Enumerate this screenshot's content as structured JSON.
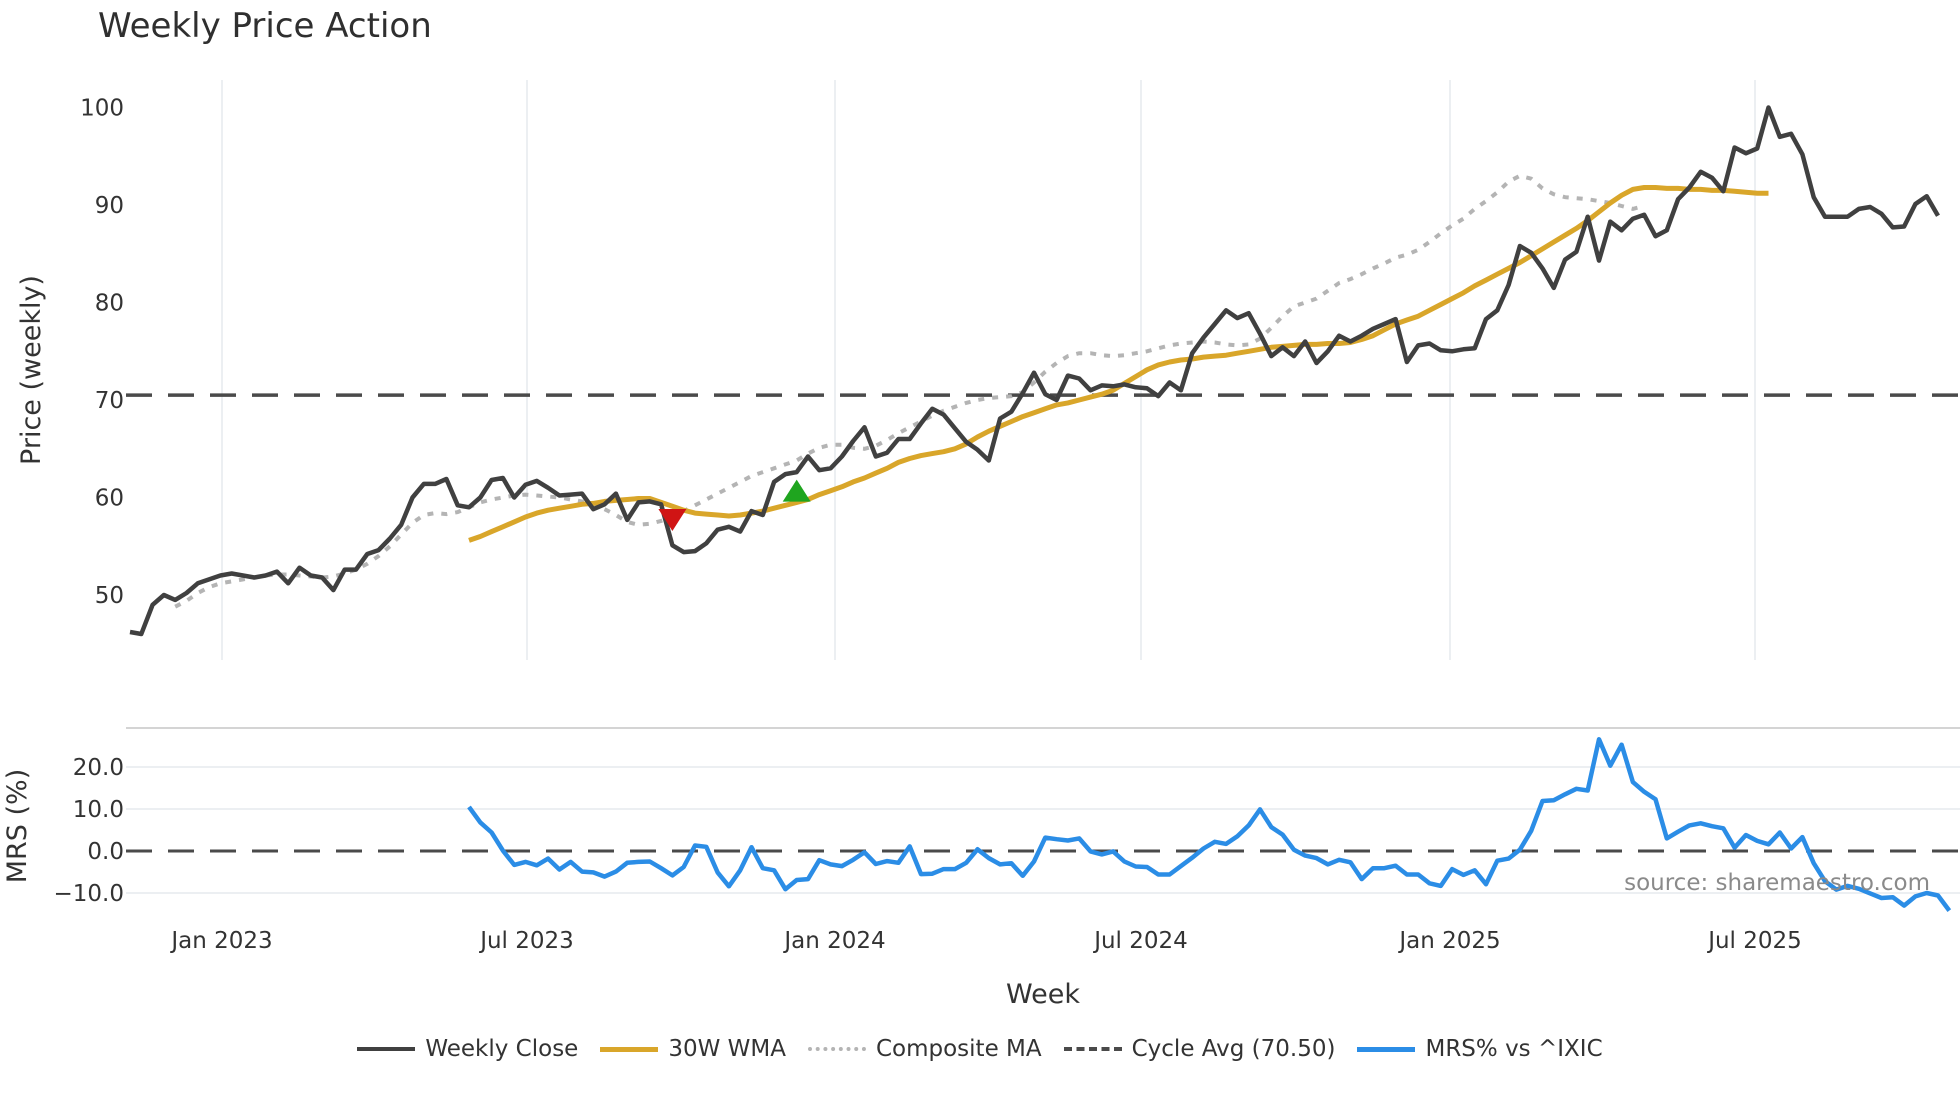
{
  "title": "Weekly Price Action",
  "source_note": "source: sharemaestro.com",
  "colors": {
    "weekly_close": "#404040",
    "wma": "#d9a62a",
    "composite": "#b4b4b4",
    "cycle": "#4a4a4a",
    "mrs": "#2b8de6",
    "signal_up": "#1fa51f",
    "signal_down": "#d01414",
    "grid": "#eceff2"
  },
  "legend": [
    {
      "key": "weekly_close",
      "label": "Weekly Close",
      "style": "solid"
    },
    {
      "key": "wma",
      "label": "30W WMA",
      "style": "solid"
    },
    {
      "key": "composite",
      "label": "Composite MA",
      "style": "dotted"
    },
    {
      "key": "cycle",
      "label": "Cycle Avg (70.50)",
      "style": "dashed"
    },
    {
      "key": "mrs",
      "label": "MRS% vs ^IXIC",
      "style": "solid"
    }
  ],
  "chart_data": [
    {
      "type": "line",
      "title": "Weekly Price Action",
      "xlabel": "Week",
      "ylabel": "Price (weekly)",
      "ylim": [
        43,
        103
      ],
      "yticks": [
        50,
        60,
        70,
        80,
        90,
        100
      ],
      "xtick_labels": [
        "Jan 2023",
        "Jul 2023",
        "Jan 2024",
        "Jul 2024",
        "Jan 2025",
        "Jul 2025"
      ],
      "grid": true,
      "x_start_week": "2022-11-14",
      "series": [
        {
          "name": "Weekly Close",
          "start_index": 0,
          "values": [
            46.2,
            46.0,
            49.0,
            50.0,
            49.5,
            50.2,
            51.2,
            51.6,
            52.0,
            52.2,
            52.0,
            51.8,
            52.0,
            52.4,
            51.2,
            52.8,
            52.0,
            51.8,
            50.5,
            52.6,
            52.6,
            54.2,
            54.6,
            55.8,
            57.2,
            60.0,
            61.4,
            61.4,
            61.9,
            59.2,
            59.0,
            60.0,
            61.8,
            62.0,
            60.0,
            61.3,
            61.7,
            61.0,
            60.2,
            60.3,
            60.4,
            58.8,
            59.3,
            60.4,
            57.7,
            59.5,
            59.6,
            59.3,
            55.1,
            54.4,
            54.5,
            55.3,
            56.7,
            57.0,
            56.5,
            58.6,
            58.2,
            61.6,
            62.4,
            62.6,
            64.2,
            62.8,
            63.0,
            64.2,
            65.8,
            67.2,
            64.2,
            64.6,
            66.0,
            66.0,
            67.6,
            69.1,
            68.5,
            67.1,
            65.7,
            64.9,
            63.8,
            68.1,
            68.8,
            70.7,
            72.8,
            70.6,
            70.0,
            72.5,
            72.2,
            71.0,
            71.5,
            71.4,
            71.6,
            71.3,
            71.2,
            70.4,
            71.8,
            71.0,
            74.8,
            76.4,
            77.8,
            79.2,
            78.4,
            78.9,
            76.8,
            74.5,
            75.4,
            74.5,
            76.0,
            73.8,
            75.0,
            76.6,
            76.0,
            76.6,
            77.3,
            77.8,
            78.3,
            73.9,
            75.6,
            75.8,
            75.1,
            75.0,
            75.2,
            75.3,
            78.3,
            79.2,
            81.8,
            85.8,
            85.1,
            83.5,
            81.5,
            84.4,
            85.2,
            88.8,
            84.3,
            88.3,
            87.4,
            88.6,
            89.0,
            86.8,
            87.4,
            90.6,
            91.8,
            93.4,
            92.8,
            91.4,
            95.9,
            95.3,
            95.8,
            100.0,
            97.0,
            97.3,
            95.2,
            90.8,
            88.8,
            88.8,
            88.8,
            89.6,
            89.8,
            89.1,
            87.7,
            87.8,
            90.1,
            90.9,
            88.9
          ]
        },
        {
          "name": "30W WMA",
          "start_index": 30,
          "values": [
            55.6,
            56.0,
            56.5,
            57.0,
            57.5,
            58.0,
            58.4,
            58.7,
            58.9,
            59.1,
            59.3,
            59.4,
            59.6,
            59.7,
            59.8,
            59.9,
            59.9,
            59.5,
            59.1,
            58.7,
            58.4,
            58.3,
            58.2,
            58.1,
            58.2,
            58.4,
            58.6,
            58.9,
            59.2,
            59.5,
            59.8,
            60.3,
            60.7,
            61.1,
            61.6,
            62.0,
            62.5,
            63.0,
            63.6,
            64.0,
            64.3,
            64.5,
            64.7,
            65.0,
            65.5,
            66.2,
            66.8,
            67.3,
            67.8,
            68.3,
            68.7,
            69.1,
            69.5,
            69.7,
            70.0,
            70.3,
            70.6,
            71.0,
            71.7,
            72.4,
            73.1,
            73.6,
            73.9,
            74.1,
            74.2,
            74.4,
            74.5,
            74.6,
            74.8,
            75.0,
            75.2,
            75.4,
            75.5,
            75.6,
            75.7,
            75.7,
            75.8,
            75.8,
            75.9,
            76.2,
            76.6,
            77.2,
            77.8,
            78.2,
            78.6,
            79.2,
            79.8,
            80.4,
            81.0,
            81.7,
            82.3,
            82.9,
            83.5,
            84.1,
            84.8,
            85.5,
            86.2,
            86.9,
            87.6,
            88.4,
            89.3,
            90.2,
            91.0,
            91.6,
            91.8,
            91.8,
            91.7,
            91.7,
            91.6,
            91.6,
            91.5,
            91.5,
            91.4,
            91.3,
            91.2,
            91.2
          ]
        },
        {
          "name": "Composite MA",
          "start_index": 4,
          "values": [
            48.8,
            49.4,
            50.2,
            50.8,
            51.2,
            51.4,
            51.6,
            51.8,
            52.0,
            52.1,
            52.1,
            52.0,
            51.9,
            51.8,
            51.9,
            52.2,
            52.6,
            53.2,
            54.0,
            55.0,
            56.2,
            57.4,
            58.2,
            58.4,
            58.3,
            58.5,
            59.0,
            59.5,
            59.8,
            60.0,
            60.2,
            60.3,
            60.2,
            60.1,
            60.0,
            59.8,
            59.6,
            59.3,
            58.8,
            58.2,
            57.5,
            57.2,
            57.3,
            57.6,
            58.0,
            58.6,
            59.2,
            59.8,
            60.4,
            61.0,
            61.6,
            62.2,
            62.6,
            63.0,
            63.4,
            63.8,
            64.5,
            65.1,
            65.4,
            65.4,
            65.1,
            65.0,
            65.3,
            65.9,
            66.6,
            67.2,
            67.8,
            68.4,
            68.9,
            69.3,
            69.7,
            70.0,
            70.2,
            70.3,
            70.4,
            70.8,
            71.8,
            72.9,
            73.8,
            74.5,
            74.8,
            74.8,
            74.6,
            74.5,
            74.6,
            74.8,
            75.0,
            75.3,
            75.6,
            75.8,
            75.9,
            76.0,
            75.9,
            75.7,
            75.6,
            75.7,
            76.3,
            77.4,
            78.6,
            79.6,
            80.0,
            80.4,
            81.2,
            82.0,
            82.4,
            82.9,
            83.5,
            84.0,
            84.6,
            84.9,
            85.4,
            86.2,
            87.1,
            87.9,
            88.6,
            89.6,
            90.4,
            91.3,
            92.4,
            93.0,
            92.7,
            91.7,
            91.1,
            90.8,
            90.7,
            90.6,
            90.4,
            90.2,
            89.9,
            89.6,
            89.9
          ]
        },
        {
          "name": "Cycle Avg (70.50)",
          "style": "dashed",
          "constant": 70.5
        }
      ],
      "markers": [
        {
          "type": "triangle-down",
          "index": 48,
          "value": 57.8,
          "color": "#d01414"
        },
        {
          "type": "triangle-up",
          "index": 59,
          "value": 60.6,
          "color": "#1fa51f"
        }
      ]
    },
    {
      "type": "line",
      "ylabel": "MRS (%)",
      "ylim": [
        -13,
        28
      ],
      "yticks": [
        "20.0",
        "10.0",
        "0.0",
        "−10.0"
      ],
      "grid": true,
      "series": [
        {
          "name": "MRS% vs ^IXIC",
          "start_index": 30,
          "values": [
            10.5,
            6.8,
            4.4,
            0.1,
            -3.3,
            -2.6,
            -3.4,
            -1.8,
            -4.4,
            -2.6,
            -4.9,
            -5.1,
            -6.1,
            -4.9,
            -2.8,
            -2.6,
            -2.5,
            -4.1,
            -5.8,
            -3.8,
            1.3,
            1.0,
            -5.1,
            -8.4,
            -4.6,
            0.9,
            -4.1,
            -4.6,
            -9.1,
            -6.9,
            -6.7,
            -2.2,
            -3.2,
            -3.6,
            -2.1,
            -0.3,
            -3.1,
            -2.4,
            -2.8,
            1.1,
            -5.5,
            -5.4,
            -4.3,
            -4.3,
            -2.8,
            0.4,
            -1.7,
            -3.2,
            -2.9,
            -5.9,
            -2.5,
            3.2,
            2.8,
            2.5,
            3.0,
            -0.1,
            -0.8,
            -0.1,
            -2.5,
            -3.7,
            -3.8,
            -5.6,
            -5.6,
            -3.6,
            -1.6,
            0.6,
            2.2,
            1.7,
            3.5,
            6.1,
            9.9,
            5.7,
            3.9,
            0.3,
            -1.1,
            -1.7,
            -3.2,
            -2.1,
            -2.7,
            -6.7,
            -4.1,
            -4.1,
            -3.5,
            -5.6,
            -5.6,
            -7.7,
            -8.3,
            -4.3,
            -5.7,
            -4.6,
            -7.9,
            -2.3,
            -1.8,
            0.3,
            4.8,
            11.9,
            12.1,
            13.5,
            14.8,
            14.4,
            26.6,
            20.3,
            25.3,
            16.4,
            14.1,
            12.3,
            3.0,
            4.6,
            6.1,
            6.6,
            5.9,
            5.4,
            0.8,
            3.8,
            2.4,
            1.6,
            4.4,
            0.6,
            3.3,
            -2.9,
            -7.2,
            -9.2,
            -8.3,
            -9.0,
            -10.1,
            -11.2,
            -11.0,
            -13.0,
            -10.8,
            -10.0,
            -10.6,
            -14.2
          ]
        }
      ],
      "reference_line": {
        "value": 0.0,
        "style": "dashed"
      }
    }
  ]
}
